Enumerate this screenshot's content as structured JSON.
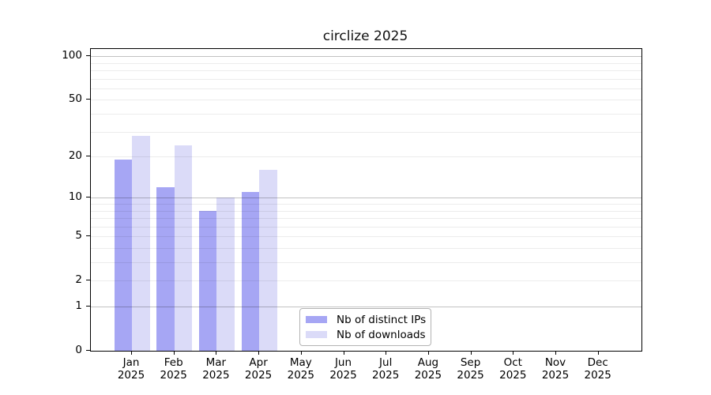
{
  "chart_data": {
    "type": "bar",
    "title": "circlize 2025",
    "categories": [
      "Jan",
      "Feb",
      "Mar",
      "Apr",
      "May",
      "Jun",
      "Jul",
      "Aug",
      "Sep",
      "Oct",
      "Nov",
      "Dec"
    ],
    "x_sublabel": "2025",
    "series": [
      {
        "name": "Nb of distinct IPs",
        "color": "#a6a6f4",
        "values": [
          19,
          12,
          8,
          11,
          0,
          0,
          0,
          0,
          0,
          0,
          0,
          0
        ]
      },
      {
        "name": "Nb of downloads",
        "color": "#dbdbf8",
        "values": [
          28,
          24,
          10,
          16,
          0,
          0,
          0,
          0,
          0,
          0,
          0,
          0
        ]
      }
    ],
    "yscale": "log10(value+1)",
    "yticks": [
      0,
      1,
      2,
      5,
      10,
      20,
      50,
      100
    ],
    "grid_major": [
      1,
      10,
      100
    ],
    "grid_minor": [
      2,
      3,
      4,
      5,
      6,
      7,
      8,
      9,
      20,
      30,
      40,
      50,
      60,
      70,
      80,
      90
    ],
    "ylim": [
      0,
      113
    ],
    "legend_position": "lower center",
    "colors": {
      "grid_major": "#c2c2c2",
      "grid_minor": "#ededed",
      "axis": "#000000",
      "background": "#ffffff"
    }
  }
}
